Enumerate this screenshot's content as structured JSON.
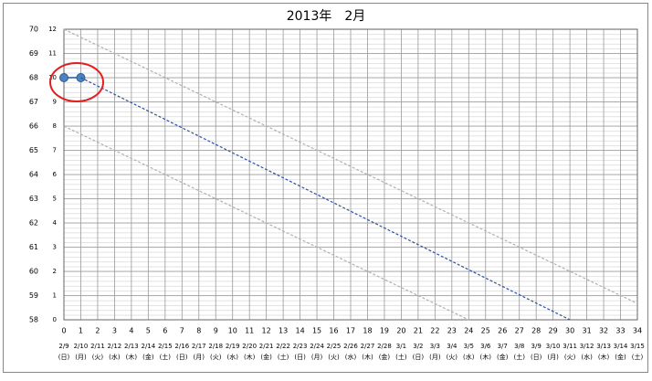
{
  "chart_data": {
    "type": "line",
    "title": "2013年　2月",
    "xlim": [
      0,
      34
    ],
    "xticks": [
      0,
      1,
      2,
      3,
      4,
      5,
      6,
      7,
      8,
      9,
      10,
      11,
      12,
      13,
      14,
      15,
      16,
      17,
      18,
      19,
      20,
      21,
      22,
      23,
      24,
      25,
      26,
      27,
      28,
      29,
      30,
      31,
      32,
      33,
      34
    ],
    "dates": [
      "2/9",
      "2/10",
      "2/11",
      "2/12",
      "2/13",
      "2/14",
      "2/15",
      "2/16",
      "2/17",
      "2/18",
      "2/19",
      "2/20",
      "2/21",
      "2/22",
      "2/23",
      "2/24",
      "2/25",
      "2/26",
      "2/27",
      "2/28",
      "3/1",
      "3/2",
      "3/3",
      "3/4",
      "3/5",
      "3/6",
      "3/7",
      "3/8",
      "3/9",
      "3/10",
      "3/11",
      "3/12",
      "3/13",
      "3/14",
      "3/15"
    ],
    "weekdays": [
      "(日)",
      "(月)",
      "(火)",
      "(水)",
      "(木)",
      "(金)",
      "(土)",
      "(日)",
      "(月)",
      "(火)",
      "(水)",
      "(木)",
      "(金)",
      "(土)",
      "(日)",
      "(月)",
      "(火)",
      "(水)",
      "(木)",
      "(金)",
      "(土)",
      "(日)",
      "(月)",
      "(火)",
      "(水)",
      "(木)",
      "(金)",
      "(土)",
      "(日)",
      "(月)",
      "(火)",
      "(水)",
      "(木)",
      "(金)",
      "(土)"
    ],
    "ylim": [
      58,
      70
    ],
    "yticks": [
      58,
      59,
      60,
      61,
      62,
      63,
      64,
      65,
      66,
      67,
      68,
      69,
      70
    ],
    "y2lim": [
      0,
      12
    ],
    "y2ticks": [
      0,
      1,
      2,
      3,
      4,
      5,
      6,
      7,
      8,
      9,
      10,
      11,
      12
    ],
    "grid": true,
    "series": [
      {
        "color": "#4f81bd",
        "style": "solid",
        "marker": true,
        "x": [
          0,
          1
        ],
        "values": [
          68,
          68
        ]
      },
      {
        "color": "#2e4fa3",
        "style": "dashed",
        "marker": false,
        "x": [
          1,
          30
        ],
        "values": [
          68,
          58
        ]
      },
      {
        "color": "#b0b0b0",
        "style": "dashed",
        "marker": false,
        "x": [
          0,
          34
        ],
        "values": [
          70,
          58.67
        ]
      },
      {
        "color": "#b0b0b0",
        "style": "dashed",
        "marker": false,
        "x": [
          0,
          24
        ],
        "values": [
          66,
          58
        ]
      }
    ]
  }
}
